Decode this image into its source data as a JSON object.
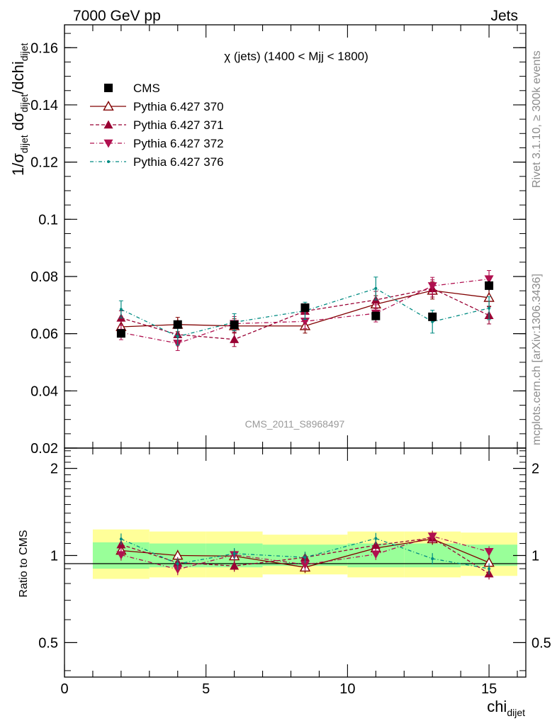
{
  "header": {
    "left": "7000 GeV pp",
    "right": "Jets"
  },
  "side_labels": {
    "rivet": "Rivet 3.1.10, ≥ 300k events",
    "mcplots": "mcplots.cern.ch [arXiv:1306.3436]"
  },
  "chart_data": [
    {
      "type": "line",
      "panel": "main",
      "title": "χ (jets) (1400 < Mjj < 1800)",
      "watermark": "CMS_2011_S8968497",
      "ylabel": "1/σdijet dσdijet/dchidijet",
      "ylim": [
        0.02,
        0.168
      ],
      "xlim": [
        0,
        16.3
      ],
      "yticks": [
        0.02,
        0.04,
        0.06,
        0.08,
        0.1,
        0.12,
        0.14,
        0.16
      ],
      "ytick_labels": [
        "0.02",
        "0.04",
        "0.06",
        "0.08",
        "0.1",
        "0.12",
        "0.14",
        "0.16"
      ],
      "x": [
        2,
        4,
        6,
        8.5,
        11,
        13,
        15
      ],
      "legend_position": "top-left",
      "series": [
        {
          "name": "CMS",
          "style": "square",
          "color": "#000000",
          "values": [
            0.0601,
            0.0632,
            0.0631,
            0.0691,
            0.0662,
            0.0659,
            0.0768
          ],
          "errors": [
            0.0012,
            0.0012,
            0.0013,
            0.0015,
            0.0015,
            0.0014,
            0.0017
          ]
        },
        {
          "name": "Pythia 6.427 370",
          "style": "open-triangle-up-solid",
          "color": "#800000",
          "values": [
            0.0624,
            0.0632,
            0.0627,
            0.0627,
            0.0703,
            0.0751,
            0.0726
          ],
          "errors": [
            0.0025,
            0.0025,
            0.0025,
            0.0025,
            0.003,
            0.003,
            0.003
          ]
        },
        {
          "name": "Pythia 6.427 371",
          "style": "triangle-up-dashed",
          "color": "#990033",
          "values": [
            0.0655,
            0.0597,
            0.058,
            0.0679,
            0.0718,
            0.0758,
            0.0664
          ],
          "errors": [
            0.0025,
            0.0025,
            0.0025,
            0.0025,
            0.003,
            0.003,
            0.003
          ]
        },
        {
          "name": "Pythia 6.427 372",
          "style": "triangle-down-dashdot",
          "color": "#b0104f",
          "values": [
            0.0604,
            0.0566,
            0.0635,
            0.0643,
            0.0671,
            0.0767,
            0.0791
          ],
          "errors": [
            0.0025,
            0.0025,
            0.0025,
            0.0025,
            0.003,
            0.003,
            0.003
          ]
        },
        {
          "name": "Pythia 6.427 376",
          "style": "dot-dashdot",
          "color": "#008b82",
          "values": [
            0.0685,
            0.059,
            0.064,
            0.068,
            0.0758,
            0.0642,
            0.0689
          ],
          "errors": [
            0.003,
            0.003,
            0.003,
            0.003,
            0.004,
            0.004,
            0.004
          ]
        }
      ]
    },
    {
      "type": "line",
      "panel": "ratio",
      "ylabel": "Ratio to CMS",
      "ylim": [
        0.38,
        2.35
      ],
      "xlim": [
        0,
        16.3
      ],
      "log_y": true,
      "xlabel": "chidijet",
      "yticks": [
        0.5,
        1,
        2
      ],
      "ytick_labels": [
        "0.5",
        "1",
        "2"
      ],
      "xticks": [
        0,
        5,
        10,
        15
      ],
      "xtick_labels": [
        "0",
        "5",
        "10",
        "15"
      ],
      "x": [
        2,
        4,
        6,
        8.5,
        11,
        13,
        15
      ],
      "bins": [
        [
          1,
          3
        ],
        [
          3,
          5
        ],
        [
          5,
          7
        ],
        [
          7,
          10
        ],
        [
          10,
          12
        ],
        [
          12,
          14
        ],
        [
          14,
          16
        ]
      ],
      "band_inner": [
        [
          0.9,
          1.11
        ],
        [
          0.91,
          1.1
        ],
        [
          0.91,
          1.1
        ],
        [
          0.92,
          1.09
        ],
        [
          0.91,
          1.1
        ],
        [
          0.91,
          1.1
        ],
        [
          0.92,
          1.09
        ]
      ],
      "band_outer": [
        [
          0.83,
          1.23
        ],
        [
          0.84,
          1.21
        ],
        [
          0.84,
          1.21
        ],
        [
          0.86,
          1.18
        ],
        [
          0.84,
          1.21
        ],
        [
          0.84,
          1.21
        ],
        [
          0.85,
          1.2
        ]
      ],
      "series": [
        {
          "name": "Pythia 6.427 370",
          "color": "#800000",
          "values": [
            1.04,
            1.0,
            0.995,
            0.91,
            1.06,
            1.14,
            0.945
          ]
        },
        {
          "name": "Pythia 6.427 371",
          "color": "#990033",
          "values": [
            1.09,
            0.945,
            0.92,
            0.985,
            1.085,
            1.15,
            0.865
          ]
        },
        {
          "name": "Pythia 6.427 372",
          "color": "#b0104f",
          "values": [
            1.005,
            0.895,
            1.005,
            0.93,
            1.01,
            1.165,
            1.03
          ]
        },
        {
          "name": "Pythia 6.427 376",
          "color": "#008b82",
          "values": [
            1.14,
            0.935,
            1.015,
            0.985,
            1.145,
            0.975,
            0.9
          ]
        }
      ],
      "colors": {
        "band_inner": "#99ff99",
        "band_outer": "#ffff99"
      }
    }
  ]
}
